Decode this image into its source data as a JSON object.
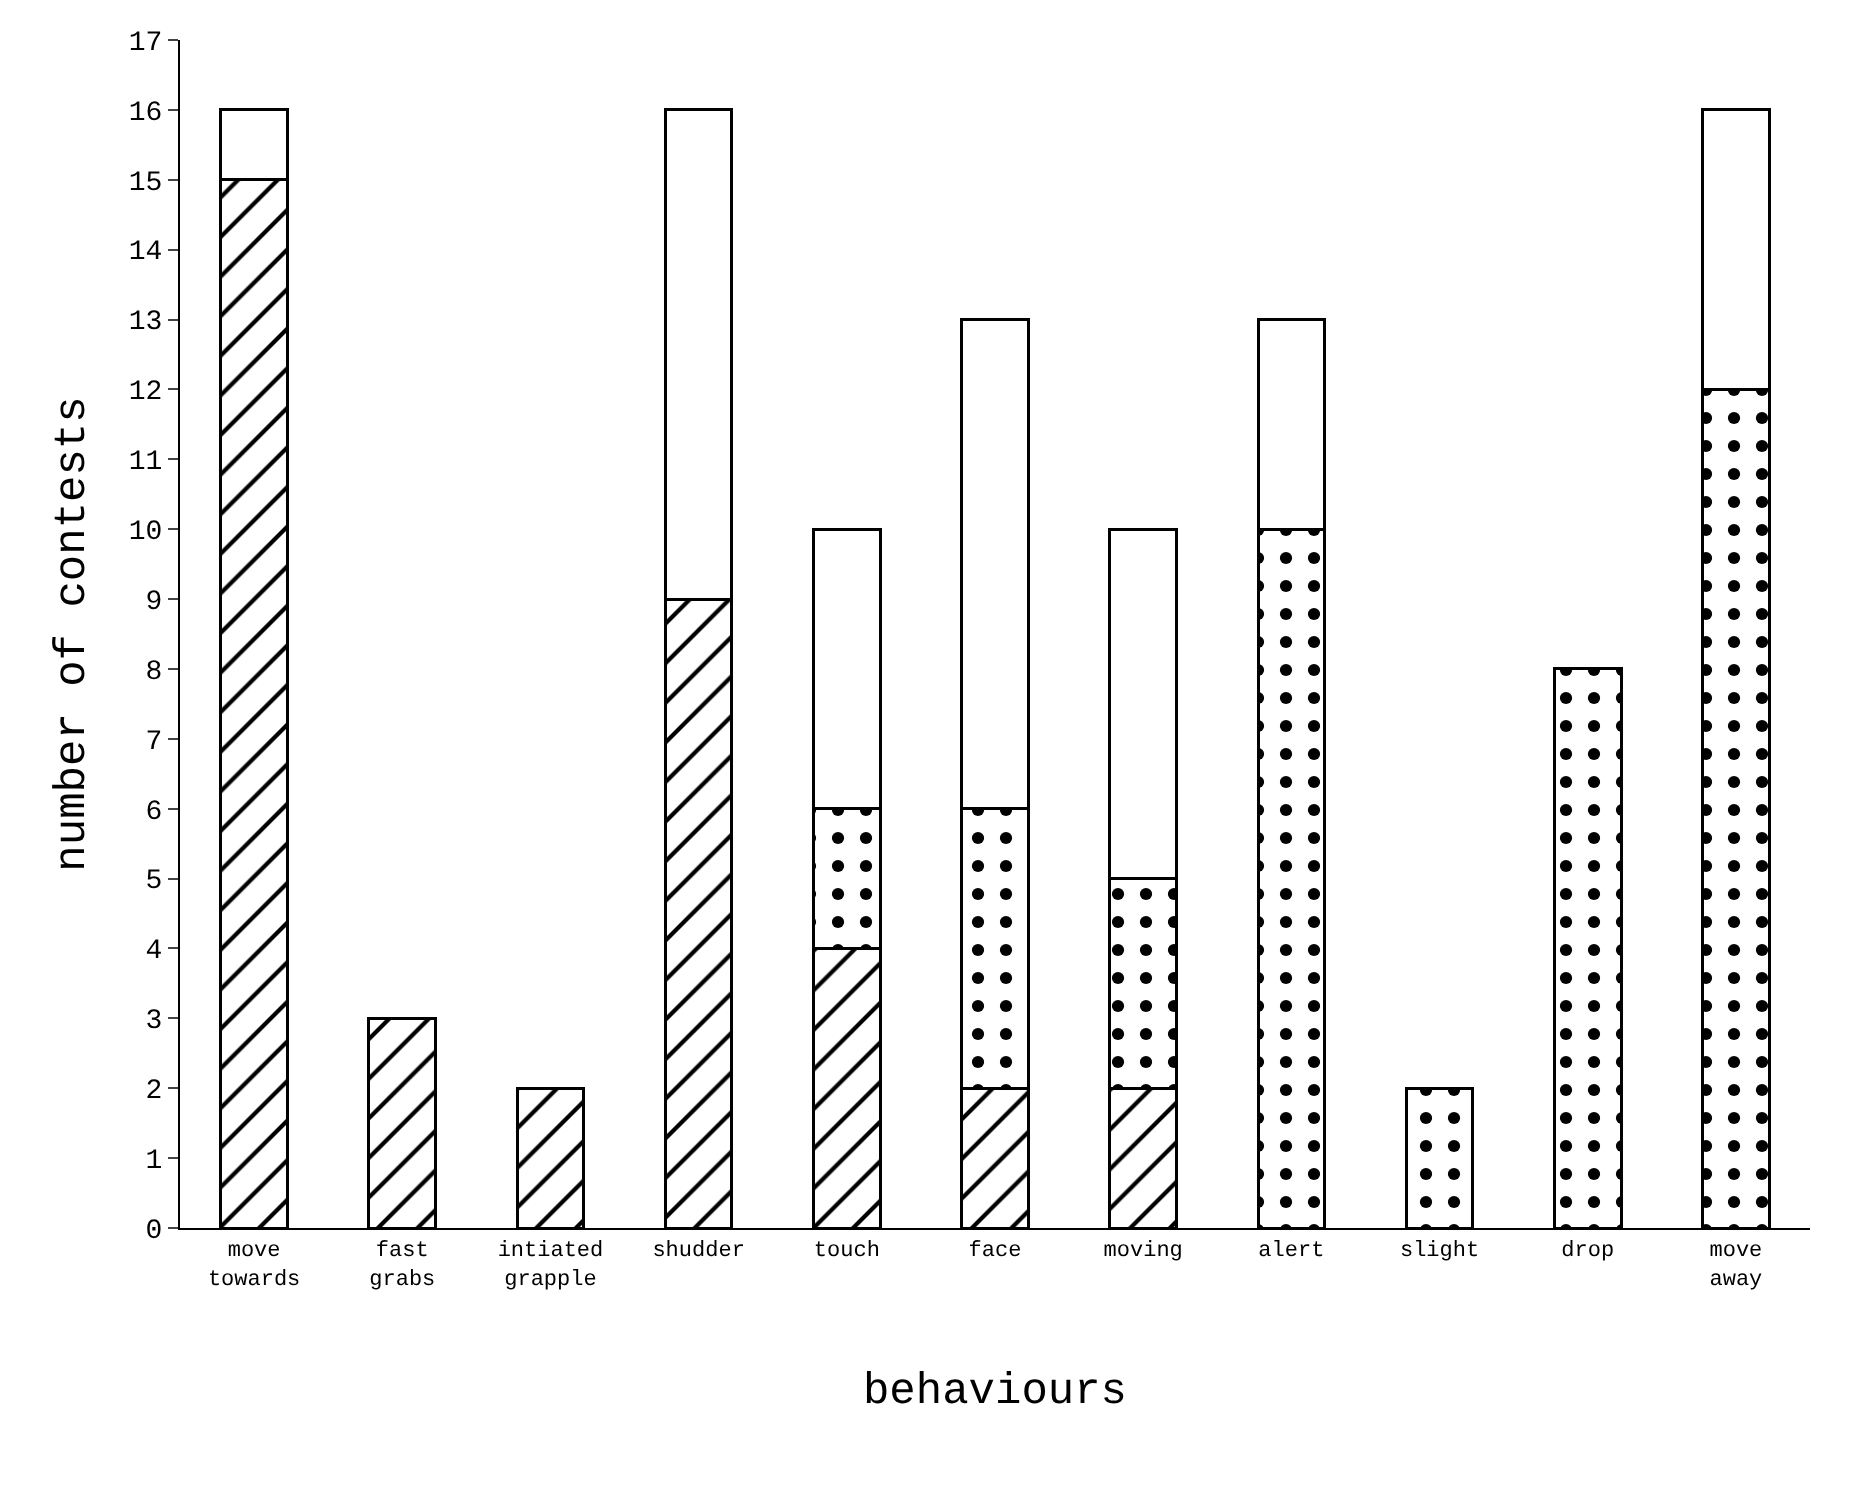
{
  "chart_data": {
    "type": "bar",
    "stacked": true,
    "xlabel": "behaviours",
    "ylabel": "number of contests",
    "categories": [
      "move\ntowards",
      "fast\ngrabs",
      "intiated\ngrapple",
      "shudder",
      "touch",
      "face",
      "moving",
      "alert",
      "slight",
      "drop",
      "move\naway"
    ],
    "series": [
      {
        "color": "#000000",
        "values": [
          15,
          3,
          2,
          9,
          4,
          2,
          2,
          null,
          null,
          null,
          null
        ]
      },
      {
        "color": "#000000",
        "values": [
          null,
          null,
          null,
          null,
          2,
          4,
          3,
          10,
          2,
          8,
          12
        ]
      },
      {
        "color": "#ffffff",
        "values": [
          1,
          null,
          null,
          7,
          4,
          7,
          5,
          3,
          null,
          null,
          4
        ]
      }
    ],
    "ylim": [
      0,
      17
    ],
    "yticks": [
      0,
      1,
      2,
      3,
      4,
      5,
      6,
      7,
      8,
      9,
      10,
      11,
      12,
      13,
      14,
      15,
      16,
      17
    ],
    "legend": false
  }
}
